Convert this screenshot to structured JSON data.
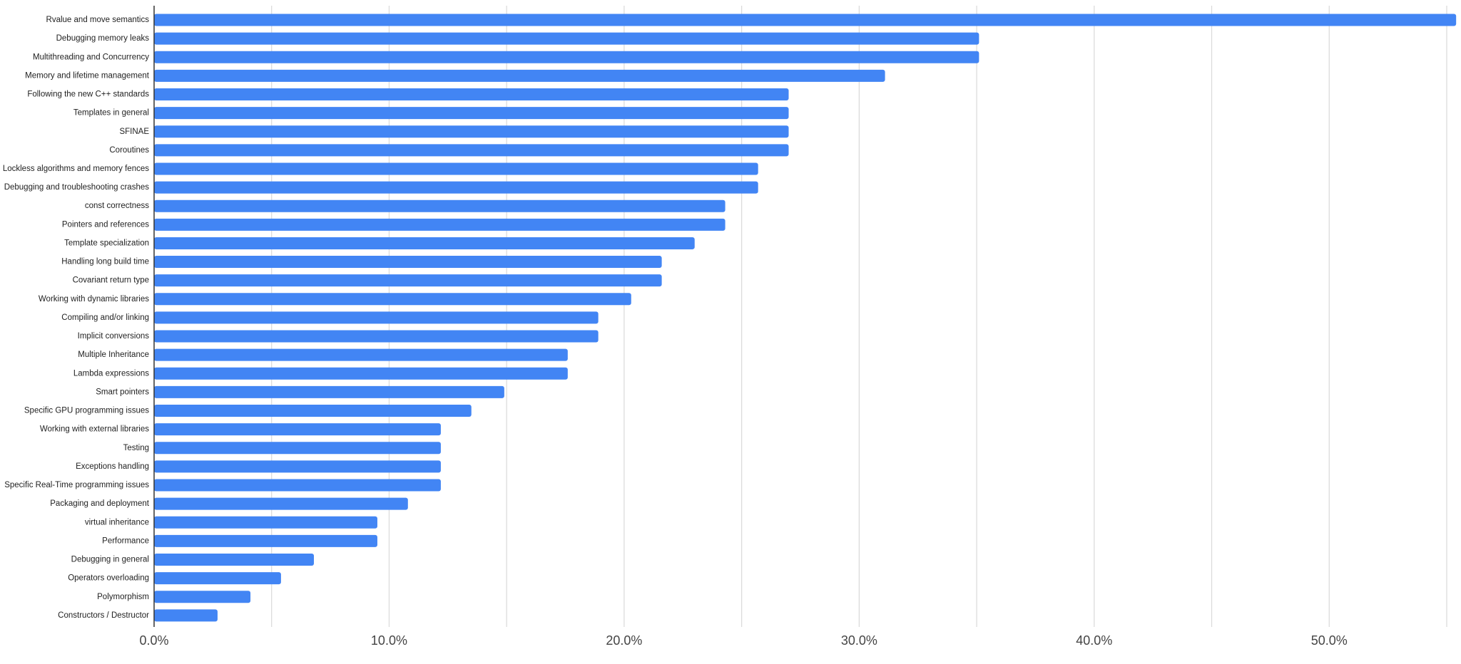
{
  "chart_data": {
    "type": "bar",
    "orientation": "horizontal",
    "bar_color": "#4285f4",
    "grid": true,
    "xlim": [
      0,
      0.55
    ],
    "x_ticks": [
      0,
      0.1,
      0.2,
      0.3,
      0.4,
      0.5
    ],
    "x_tick_labels": [
      "0.0%",
      "10.0%",
      "20.0%",
      "30.0%",
      "40.0%",
      "50.0%"
    ],
    "categories": [
      "Rvalue and move semantics",
      "Debugging memory leaks",
      "Multithreading and Concurrency",
      "Memory and lifetime management",
      "Following the new C++ standards",
      "Templates in general",
      "SFINAE",
      "Coroutines",
      "Lockless algorithms and memory fences",
      "Debugging and troubleshooting crashes",
      "const correctness",
      "Pointers and references",
      "Template specialization",
      "Handling long build time",
      "Covariant return type",
      "Working with dynamic libraries",
      "Compiling and/or linking",
      "Implicit conversions",
      "Multiple Inheritance",
      "Lambda expressions",
      "Smart pointers",
      "Specific GPU programming issues",
      "Working with external libraries",
      "Testing",
      "Exceptions handling",
      "Specific Real-Time programming issues",
      "Packaging and deployment",
      "virtual inheritance",
      "Performance",
      "Debugging in general",
      "Operators overloading",
      "Polymorphism",
      "Constructors / Destructor"
    ],
    "values": [
      0.554,
      0.351,
      0.351,
      0.311,
      0.27,
      0.27,
      0.27,
      0.27,
      0.257,
      0.257,
      0.243,
      0.243,
      0.23,
      0.216,
      0.216,
      0.203,
      0.189,
      0.189,
      0.176,
      0.176,
      0.149,
      0.135,
      0.122,
      0.122,
      0.122,
      0.122,
      0.108,
      0.095,
      0.095,
      0.068,
      0.054,
      0.041,
      0.027
    ],
    "title": "",
    "xlabel": "",
    "ylabel": ""
  }
}
